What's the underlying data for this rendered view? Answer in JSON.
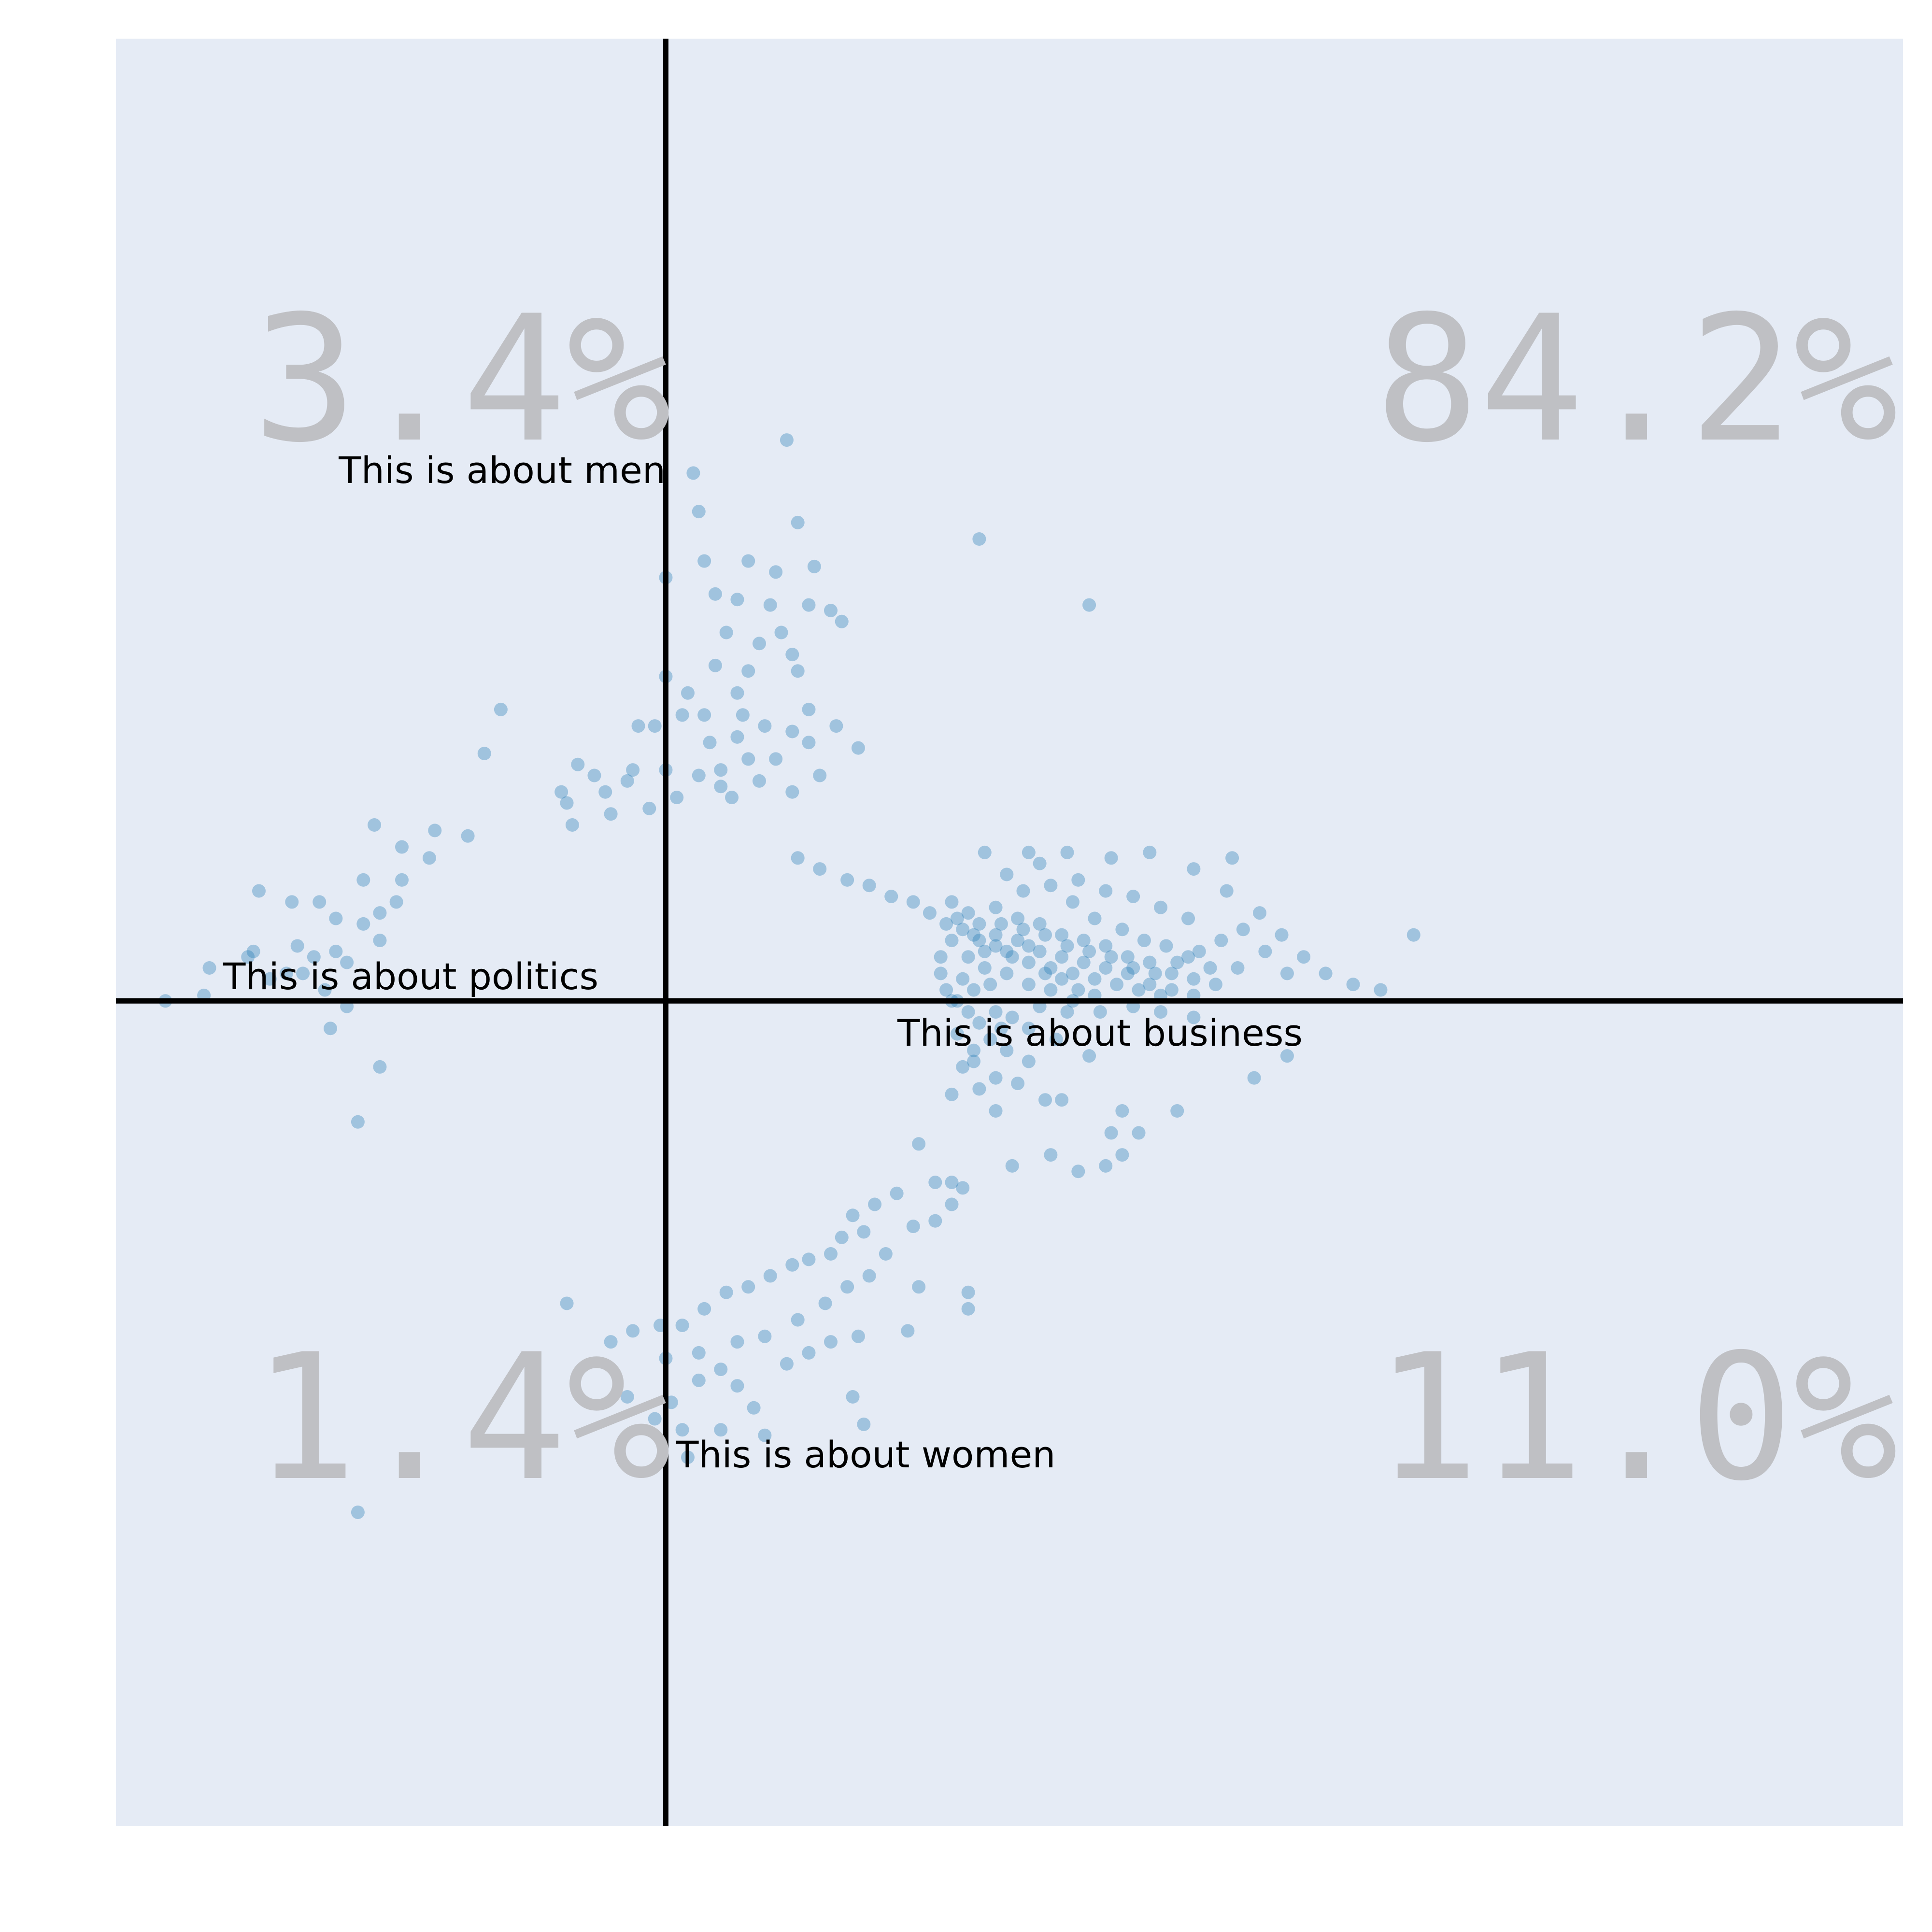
{
  "chart_data": {
    "type": "scatter",
    "title": "",
    "xlabel": "",
    "ylabel": "",
    "xlim": [
      -1,
      2.25
    ],
    "ylim": [
      -1.5,
      1.75
    ],
    "grid": false,
    "background": "#e5ebf5",
    "point_color": "#1f77b4",
    "quadrant_percentages": {
      "top_left": "3.4%",
      "top_right": "84.2%",
      "bottom_left": "1.4%",
      "bottom_right": "11.0%"
    },
    "axis_labels": {
      "positive_y": "This is about men",
      "negative_x": "This is about politics",
      "positive_x": "This is about business",
      "negative_y": "This is about women"
    },
    "points": [
      [
        0.22,
        1.02
      ],
      [
        0.05,
        0.96
      ],
      [
        0.06,
        0.89
      ],
      [
        0.57,
        0.84
      ],
      [
        0.24,
        0.87
      ],
      [
        0.77,
        0.72
      ],
      [
        0.0,
        0.77
      ],
      [
        0.07,
        0.8
      ],
      [
        0.15,
        0.8
      ],
      [
        0.2,
        0.78
      ],
      [
        0.27,
        0.79
      ],
      [
        0.09,
        0.74
      ],
      [
        0.13,
        0.73
      ],
      [
        0.19,
        0.72
      ],
      [
        0.26,
        0.72
      ],
      [
        0.3,
        0.71
      ],
      [
        0.32,
        0.69
      ],
      [
        0.21,
        0.67
      ],
      [
        0.11,
        0.67
      ],
      [
        0.17,
        0.65
      ],
      [
        0.23,
        0.63
      ],
      [
        0.09,
        0.61
      ],
      [
        0.15,
        0.6
      ],
      [
        0.24,
        0.6
      ],
      [
        0.13,
        0.56
      ],
      [
        0.04,
        0.56
      ],
      [
        0.0,
        0.59
      ],
      [
        0.03,
        0.52
      ],
      [
        0.07,
        0.52
      ],
      [
        0.14,
        0.52
      ],
      [
        0.18,
        0.5
      ],
      [
        0.23,
        0.49
      ],
      [
        0.26,
        0.47
      ],
      [
        0.31,
        0.5
      ],
      [
        0.13,
        0.48
      ],
      [
        0.08,
        0.47
      ],
      [
        0.15,
        0.44
      ],
      [
        0.2,
        0.44
      ],
      [
        0.28,
        0.41
      ],
      [
        0.1,
        0.42
      ],
      [
        0.17,
        0.4
      ],
      [
        0.23,
        0.38
      ],
      [
        0.35,
        0.46
      ],
      [
        0.26,
        0.53
      ],
      [
        -0.02,
        0.5
      ],
      [
        -0.05,
        0.5
      ],
      [
        -0.13,
        0.41
      ],
      [
        -0.16,
        0.43
      ],
      [
        -0.19,
        0.38
      ],
      [
        -0.18,
        0.36
      ],
      [
        -0.11,
        0.38
      ],
      [
        -0.07,
        0.4
      ],
      [
        -0.06,
        0.42
      ],
      [
        0.0,
        0.42
      ],
      [
        0.02,
        0.37
      ],
      [
        0.06,
        0.41
      ],
      [
        0.1,
        0.39
      ],
      [
        0.12,
        0.37
      ],
      [
        -0.03,
        0.35
      ],
      [
        -0.1,
        0.34
      ],
      [
        -0.33,
        0.45
      ],
      [
        -0.3,
        0.53
      ],
      [
        -0.36,
        0.3
      ],
      [
        -0.42,
        0.31
      ],
      [
        -0.48,
        0.28
      ],
      [
        -0.53,
        0.32
      ],
      [
        -0.43,
        0.26
      ],
      [
        -0.48,
        0.22
      ],
      [
        -0.55,
        0.22
      ],
      [
        -0.49,
        0.18
      ],
      [
        -0.52,
        0.16
      ],
      [
        -0.55,
        0.14
      ],
      [
        -0.6,
        0.15
      ],
      [
        -0.63,
        0.18
      ],
      [
        -0.68,
        0.18
      ],
      [
        -0.74,
        0.2
      ],
      [
        -0.75,
        0.09
      ],
      [
        -0.67,
        0.1
      ],
      [
        -0.6,
        0.09
      ],
      [
        -0.52,
        0.11
      ],
      [
        -0.58,
        0.07
      ],
      [
        -0.64,
        0.08
      ],
      [
        -0.66,
        0.05
      ],
      [
        -0.69,
        0.05
      ],
      [
        -0.72,
        0.04
      ],
      [
        -0.76,
        0.08
      ],
      [
        -0.83,
        0.06
      ],
      [
        -0.62,
        0.02
      ],
      [
        -0.84,
        0.01
      ],
      [
        -0.91,
        -0.0
      ],
      [
        -0.58,
        -0.01
      ],
      [
        -0.61,
        -0.05
      ],
      [
        -0.52,
        -0.12
      ],
      [
        -0.56,
        -0.22
      ],
      [
        -0.17,
        0.32
      ],
      [
        0.24,
        0.26
      ],
      [
        0.28,
        0.24
      ],
      [
        0.33,
        0.22
      ],
      [
        0.37,
        0.21
      ],
      [
        0.41,
        0.19
      ],
      [
        0.45,
        0.18
      ],
      [
        0.48,
        0.16
      ],
      [
        0.51,
        0.14
      ],
      [
        0.54,
        0.13
      ],
      [
        0.57,
        0.11
      ],
      [
        0.6,
        0.1
      ],
      [
        0.63,
        0.08
      ],
      [
        0.66,
        0.07
      ],
      [
        0.69,
        0.05
      ],
      [
        0.72,
        0.04
      ],
      [
        0.75,
        0.02
      ],
      [
        0.78,
        0.01
      ],
      [
        0.52,
        0.18
      ],
      [
        0.55,
        0.16
      ],
      [
        0.6,
        0.17
      ],
      [
        0.64,
        0.15
      ],
      [
        0.68,
        0.14
      ],
      [
        0.72,
        0.12
      ],
      [
        0.76,
        0.11
      ],
      [
        0.8,
        0.1
      ],
      [
        0.84,
        0.08
      ],
      [
        0.88,
        0.07
      ],
      [
        0.92,
        0.05
      ],
      [
        0.96,
        0.04
      ],
      [
        1.0,
        0.03
      ],
      [
        0.55,
        0.08
      ],
      [
        0.58,
        0.06
      ],
      [
        0.62,
        0.05
      ],
      [
        0.66,
        0.03
      ],
      [
        0.7,
        0.02
      ],
      [
        0.74,
        0.0
      ],
      [
        0.5,
        0.08
      ],
      [
        0.5,
        0.05
      ],
      [
        0.51,
        0.02
      ],
      [
        0.53,
        0.0
      ],
      [
        0.56,
        0.02
      ],
      [
        0.59,
        0.03
      ],
      [
        0.52,
        0.11
      ],
      [
        0.56,
        0.12
      ],
      [
        0.6,
        0.12
      ],
      [
        0.64,
        0.11
      ],
      [
        0.68,
        0.09
      ],
      [
        0.72,
        0.08
      ],
      [
        0.76,
        0.07
      ],
      [
        0.8,
        0.06
      ],
      [
        0.84,
        0.05
      ],
      [
        0.88,
        0.03
      ],
      [
        0.92,
        0.02
      ],
      [
        0.96,
        0.01
      ],
      [
        0.54,
        0.04
      ],
      [
        0.58,
        0.09
      ],
      [
        0.62,
        0.09
      ],
      [
        0.66,
        0.1
      ],
      [
        0.7,
        0.06
      ],
      [
        0.74,
        0.05
      ],
      [
        0.78,
        0.04
      ],
      [
        0.82,
        0.03
      ],
      [
        0.86,
        0.02
      ],
      [
        0.9,
        0.01
      ],
      [
        0.53,
        0.15
      ],
      [
        0.57,
        0.14
      ],
      [
        0.61,
        0.14
      ],
      [
        0.65,
        0.13
      ],
      [
        0.69,
        0.12
      ],
      [
        0.73,
        0.1
      ],
      [
        0.77,
        0.09
      ],
      [
        0.81,
        0.08
      ],
      [
        0.85,
        0.06
      ],
      [
        0.89,
        0.05
      ],
      [
        0.93,
        0.07
      ],
      [
        0.97,
        0.09
      ],
      [
        1.01,
        0.11
      ],
      [
        1.05,
        0.13
      ],
      [
        0.65,
        0.2
      ],
      [
        0.7,
        0.21
      ],
      [
        0.75,
        0.22
      ],
      [
        0.8,
        0.2
      ],
      [
        0.85,
        0.19
      ],
      [
        0.9,
        0.17
      ],
      [
        0.95,
        0.15
      ],
      [
        1.02,
        0.2
      ],
      [
        1.08,
        0.16
      ],
      [
        1.12,
        0.12
      ],
      [
        1.16,
        0.08
      ],
      [
        1.2,
        0.05
      ],
      [
        1.25,
        0.03
      ],
      [
        1.3,
        0.02
      ],
      [
        1.36,
        0.12
      ],
      [
        1.03,
        0.26
      ],
      [
        0.96,
        0.24
      ],
      [
        0.88,
        0.27
      ],
      [
        0.81,
        0.26
      ],
      [
        0.73,
        0.27
      ],
      [
        0.66,
        0.27
      ],
      [
        0.58,
        0.27
      ],
      [
        0.62,
        0.23
      ],
      [
        0.68,
        0.25
      ],
      [
        0.74,
        0.18
      ],
      [
        0.78,
        0.15
      ],
      [
        0.83,
        0.13
      ],
      [
        0.87,
        0.11
      ],
      [
        0.91,
        0.1
      ],
      [
        0.95,
        0.08
      ],
      [
        0.99,
        0.06
      ],
      [
        1.04,
        0.06
      ],
      [
        1.09,
        0.09
      ],
      [
        1.13,
        0.05
      ],
      [
        0.52,
        0.0
      ],
      [
        0.55,
        -0.02
      ],
      [
        0.57,
        -0.04
      ],
      [
        0.6,
        -0.02
      ],
      [
        0.63,
        -0.03
      ],
      [
        0.68,
        -0.01
      ],
      [
        0.73,
        -0.02
      ],
      [
        0.79,
        -0.02
      ],
      [
        0.85,
        -0.01
      ],
      [
        0.9,
        -0.02
      ],
      [
        0.96,
        -0.03
      ],
      [
        0.53,
        -0.06
      ],
      [
        0.56,
        -0.09
      ],
      [
        0.59,
        -0.07
      ],
      [
        0.62,
        -0.09
      ],
      [
        0.66,
        -0.11
      ],
      [
        0.71,
        -0.07
      ],
      [
        0.77,
        -0.1
      ],
      [
        0.54,
        -0.12
      ],
      [
        0.57,
        -0.16
      ],
      [
        0.52,
        -0.17
      ],
      [
        0.6,
        -0.14
      ],
      [
        0.64,
        -0.15
      ],
      [
        0.72,
        -0.18
      ],
      [
        0.6,
        -0.2
      ],
      [
        0.69,
        -0.18
      ],
      [
        0.83,
        -0.2
      ],
      [
        0.86,
        -0.24
      ],
      [
        0.81,
        -0.24
      ],
      [
        0.93,
        -0.2
      ],
      [
        0.7,
        -0.28
      ],
      [
        0.63,
        -0.3
      ],
      [
        0.46,
        -0.26
      ],
      [
        0.49,
        -0.33
      ],
      [
        0.52,
        -0.33
      ],
      [
        0.42,
        -0.35
      ],
      [
        0.38,
        -0.37
      ],
      [
        0.34,
        -0.39
      ],
      [
        0.32,
        -0.43
      ],
      [
        0.3,
        -0.46
      ],
      [
        0.26,
        -0.47
      ],
      [
        0.23,
        -0.48
      ],
      [
        0.19,
        -0.5
      ],
      [
        0.15,
        -0.52
      ],
      [
        0.11,
        -0.53
      ],
      [
        0.07,
        -0.56
      ],
      [
        0.03,
        -0.59
      ],
      [
        -0.01,
        -0.59
      ],
      [
        -0.06,
        -0.6
      ],
      [
        -0.1,
        -0.62
      ],
      [
        0.0,
        -0.65
      ],
      [
        0.06,
        -0.64
      ],
      [
        0.13,
        -0.62
      ],
      [
        0.18,
        -0.61
      ],
      [
        0.24,
        -0.58
      ],
      [
        0.29,
        -0.55
      ],
      [
        0.33,
        -0.52
      ],
      [
        0.37,
        -0.5
      ],
      [
        0.4,
        -0.46
      ],
      [
        0.45,
        -0.41
      ],
      [
        0.49,
        -0.4
      ],
      [
        0.52,
        -0.37
      ],
      [
        0.54,
        -0.34
      ],
      [
        0.36,
        -0.42
      ],
      [
        0.1,
        -0.67
      ],
      [
        0.06,
        -0.69
      ],
      [
        0.13,
        -0.7
      ],
      [
        0.16,
        -0.74
      ],
      [
        0.01,
        -0.73
      ],
      [
        -0.07,
        -0.72
      ],
      [
        -0.02,
        -0.76
      ],
      [
        0.03,
        -0.78
      ],
      [
        0.1,
        -0.78
      ],
      [
        0.18,
        -0.79
      ],
      [
        0.34,
        -0.72
      ],
      [
        0.36,
        -0.77
      ],
      [
        -0.18,
        -0.55
      ],
      [
        0.46,
        -0.52
      ],
      [
        0.55,
        -0.53
      ],
      [
        0.55,
        -0.56
      ],
      [
        0.22,
        -0.66
      ],
      [
        0.26,
        -0.64
      ],
      [
        0.3,
        -0.62
      ],
      [
        -0.56,
        -0.93
      ],
      [
        0.04,
        -0.83
      ],
      [
        0.35,
        -0.61
      ],
      [
        0.44,
        -0.6
      ],
      [
        0.56,
        -0.11
      ],
      [
        0.61,
        -0.05
      ],
      [
        0.66,
        -0.05
      ],
      [
        1.07,
        -0.14
      ],
      [
        1.13,
        -0.1
      ],
      [
        0.75,
        -0.31
      ],
      [
        0.8,
        -0.3
      ],
      [
        0.83,
        -0.28
      ]
    ]
  }
}
